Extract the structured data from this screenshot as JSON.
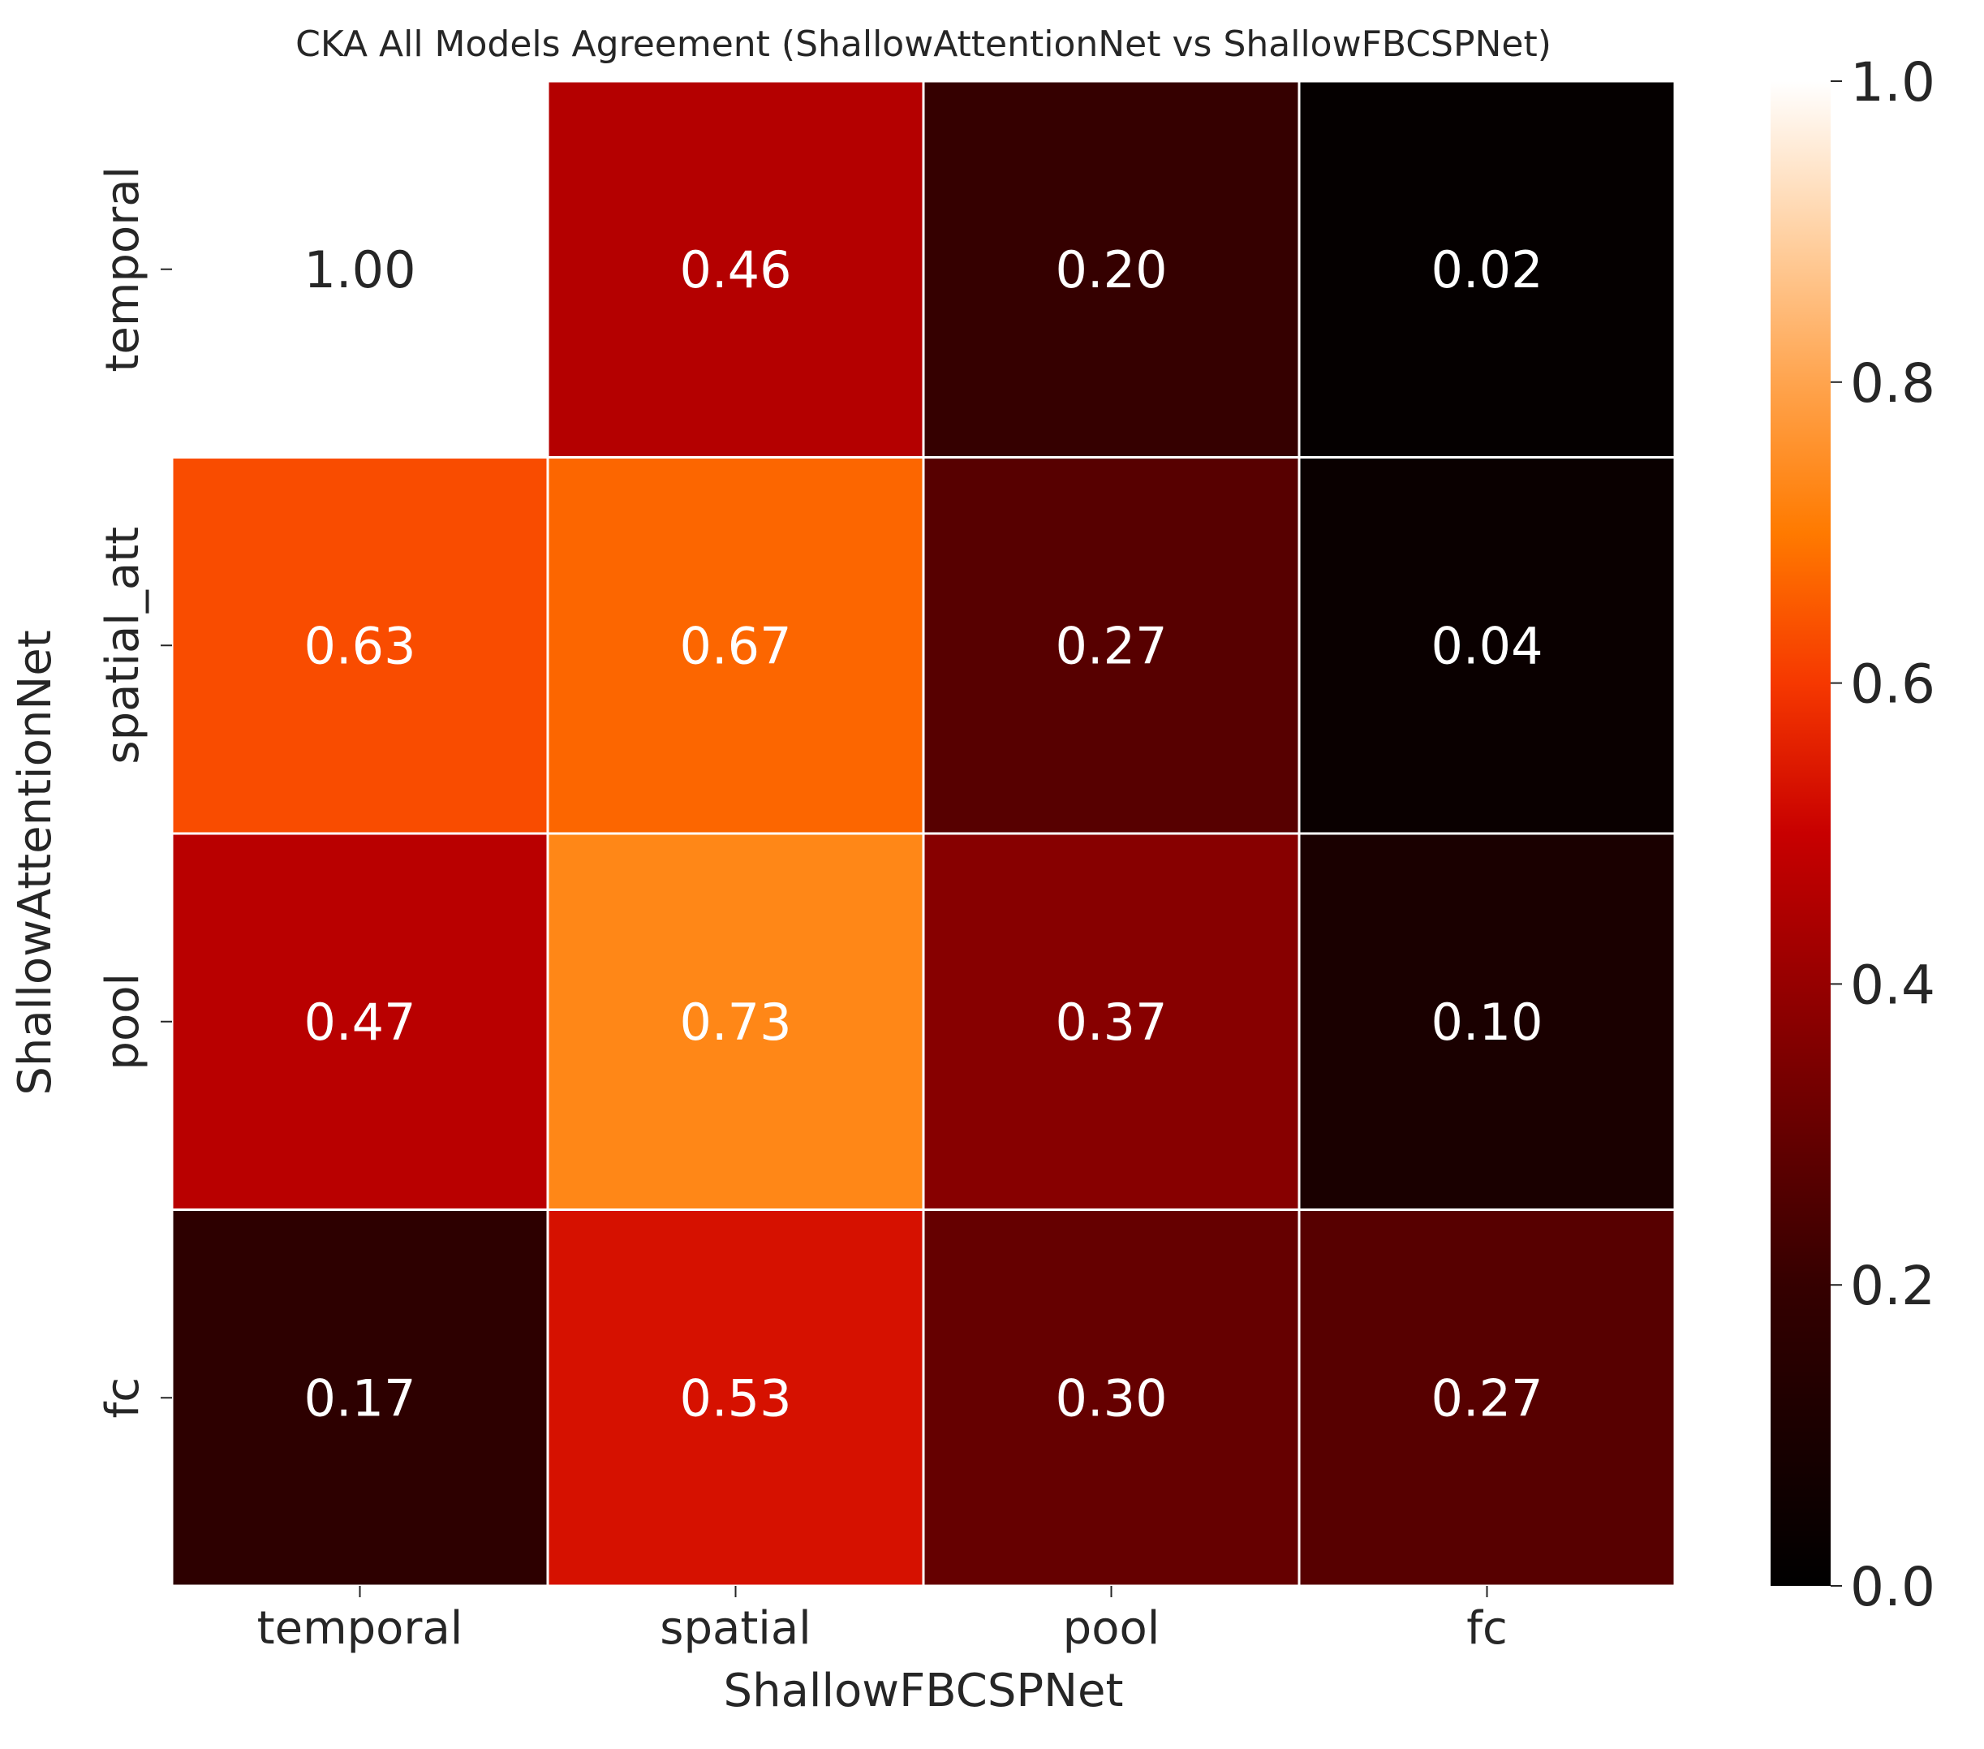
{
  "chart_data": {
    "type": "heatmap",
    "title": "CKA All Models Agreement (ShallowAttentionNet vs ShallowFBCSPNet)",
    "xlabel": "ShallowFBCSPNet",
    "ylabel": "ShallowAttentionNet",
    "x_categories": [
      "temporal",
      "spatial",
      "pool",
      "fc"
    ],
    "y_categories": [
      "temporal",
      "spatial_att",
      "pool",
      "fc"
    ],
    "values": [
      [
        1.0,
        0.46,
        0.2,
        0.02
      ],
      [
        0.63,
        0.67,
        0.27,
        0.04
      ],
      [
        0.47,
        0.73,
        0.37,
        0.1
      ],
      [
        0.17,
        0.53,
        0.3,
        0.27
      ]
    ],
    "value_labels": [
      [
        "1.00",
        "0.46",
        "0.20",
        "0.02"
      ],
      [
        "0.63",
        "0.67",
        "0.27",
        "0.04"
      ],
      [
        "0.47",
        "0.73",
        "0.37",
        "0.10"
      ],
      [
        "0.17",
        "0.53",
        "0.30",
        "0.27"
      ]
    ],
    "colormap": "gist_heat",
    "vlim": [
      0,
      1
    ],
    "colorbar_ticks": [
      "0.0",
      "0.2",
      "0.4",
      "0.6",
      "0.8",
      "1.0"
    ],
    "colorbar_tick_values": [
      0,
      0.2,
      0.4,
      0.6,
      0.8,
      1.0
    ],
    "cell_border_color": "#ffffff",
    "annotation_color_light": "#ffffff",
    "annotation_color_dark": "#262626"
  }
}
